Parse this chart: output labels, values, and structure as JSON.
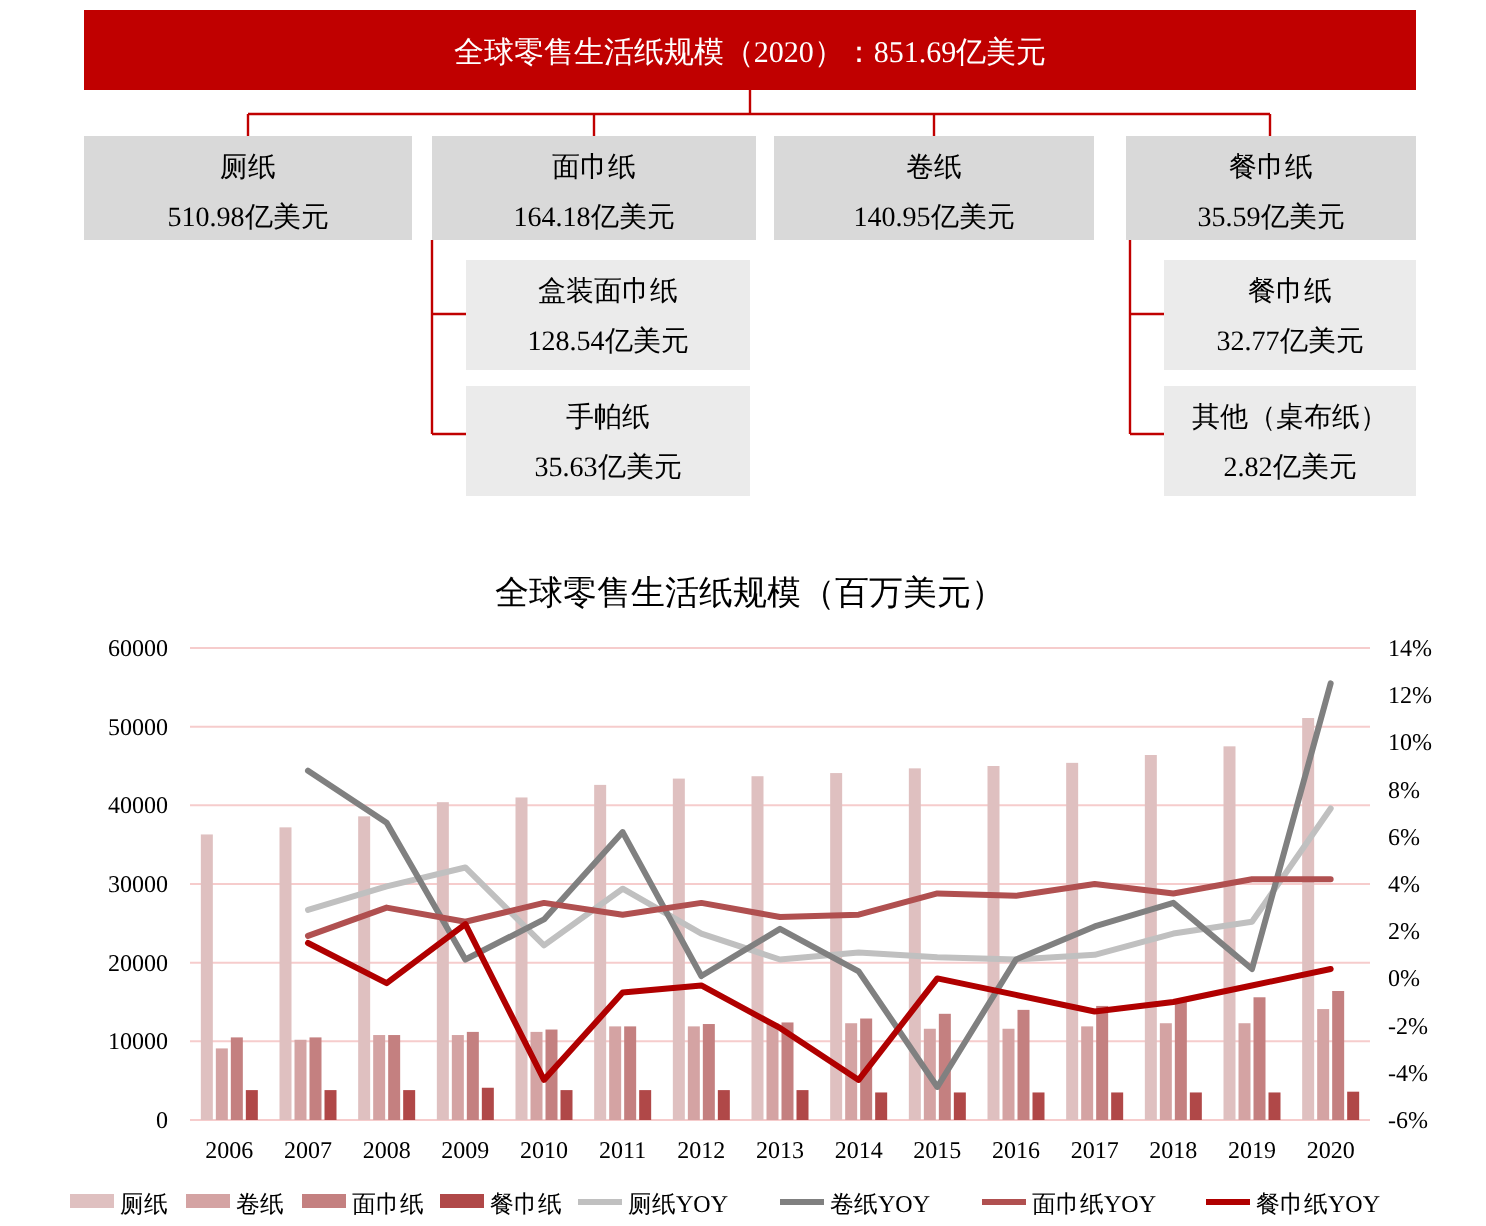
{
  "chart_data": [
    {
      "type": "other",
      "title": "全球零售生活纸规模（2020）：851.69亿美元",
      "annotations": [
        "厕纸",
        "510.98亿美元",
        "面巾纸",
        "164.18亿美元",
        "卷纸",
        "140.95亿美元",
        "餐巾纸",
        "35.59亿美元",
        "盒装面巾纸",
        "128.54亿美元",
        "手帕纸",
        "35.63亿美元",
        "餐巾纸",
        "32.77亿美元",
        "其他（桌布纸）",
        "2.82亿美元"
      ]
    },
    {
      "type": "bar",
      "title": "全球零售生活纸规模（百万美元）",
      "categories": [
        "2006",
        "2007",
        "2008",
        "2009",
        "2010",
        "2011",
        "2012",
        "2013",
        "2014",
        "2015",
        "2016",
        "2017",
        "2018",
        "2019",
        "2020"
      ],
      "series": [
        {
          "name": "厕纸",
          "type": "bar",
          "color": "#dfc0c0",
          "values": [
            36300,
            37200,
            38600,
            40400,
            41000,
            42600,
            43400,
            43700,
            44100,
            44700,
            45000,
            45400,
            46400,
            47500,
            51100
          ]
        },
        {
          "name": "卷纸",
          "type": "bar",
          "color": "#d4a3a3",
          "values": [
            9100,
            10200,
            10800,
            10800,
            11200,
            11900,
            11900,
            12300,
            12300,
            11600,
            11600,
            11900,
            12300,
            12300,
            14100
          ]
        },
        {
          "name": "面巾纸",
          "type": "bar",
          "color": "#c48080",
          "values": [
            10500,
            10500,
            10800,
            11200,
            11500,
            11900,
            12200,
            12400,
            12900,
            13500,
            14000,
            14500,
            15100,
            15600,
            16400
          ]
        },
        {
          "name": "餐巾纸",
          "type": "bar",
          "color": "#b04848",
          "values": [
            3800,
            3800,
            3800,
            4100,
            3800,
            3800,
            3800,
            3800,
            3500,
            3500,
            3500,
            3500,
            3500,
            3500,
            3600
          ]
        },
        {
          "name": "厕纸YOY",
          "type": "line",
          "axis": "y2",
          "color": "#c0c0c0",
          "values": [
            null,
            2.9,
            3.9,
            4.7,
            1.4,
            3.8,
            1.9,
            0.8,
            1.1,
            0.9,
            0.8,
            1.0,
            1.9,
            2.4,
            7.2
          ]
        },
        {
          "name": "卷纸YOY",
          "type": "line",
          "axis": "y2",
          "color": "#808080",
          "values": [
            null,
            8.8,
            6.6,
            0.8,
            2.5,
            6.2,
            0.1,
            2.1,
            0.3,
            -4.6,
            0.8,
            2.2,
            3.2,
            0.4,
            12.5
          ]
        },
        {
          "name": "面巾纸YOY",
          "type": "line",
          "axis": "y2",
          "color": "#b05050",
          "values": [
            null,
            1.8,
            3.0,
            2.4,
            3.2,
            2.7,
            3.2,
            2.6,
            2.7,
            3.6,
            3.5,
            4.0,
            3.6,
            4.2,
            4.2
          ]
        },
        {
          "name": "餐巾纸YOY",
          "type": "line",
          "axis": "y2",
          "color": "#b00000",
          "values": [
            null,
            1.5,
            -0.2,
            2.3,
            -4.3,
            -0.6,
            -0.3,
            -2.1,
            -4.3,
            0.0,
            -0.7,
            -1.4,
            -1.0,
            -0.3,
            0.4
          ]
        }
      ],
      "ylim": [
        0,
        60000
      ],
      "yticks": [
        0,
        10000,
        20000,
        30000,
        40000,
        50000,
        60000
      ],
      "y2lim": [
        -6,
        14
      ],
      "y2ticks": [
        {
          "value": -6,
          "label": "-6%"
        },
        {
          "value": -4,
          "label": "-4%"
        },
        {
          "value": -2,
          "label": "-2%"
        },
        {
          "value": 0,
          "label": "0%"
        },
        {
          "value": 2,
          "label": "2%"
        },
        {
          "value": 4,
          "label": "4%"
        },
        {
          "value": 6,
          "label": "6%"
        },
        {
          "value": 8,
          "label": "8%"
        },
        {
          "value": 10,
          "label": "10%"
        },
        {
          "value": 12,
          "label": "12%"
        },
        {
          "value": 14,
          "label": "14%"
        }
      ],
      "grid": "y",
      "legend": "bottom",
      "line_style": "solid",
      "marker": "none"
    }
  ]
}
